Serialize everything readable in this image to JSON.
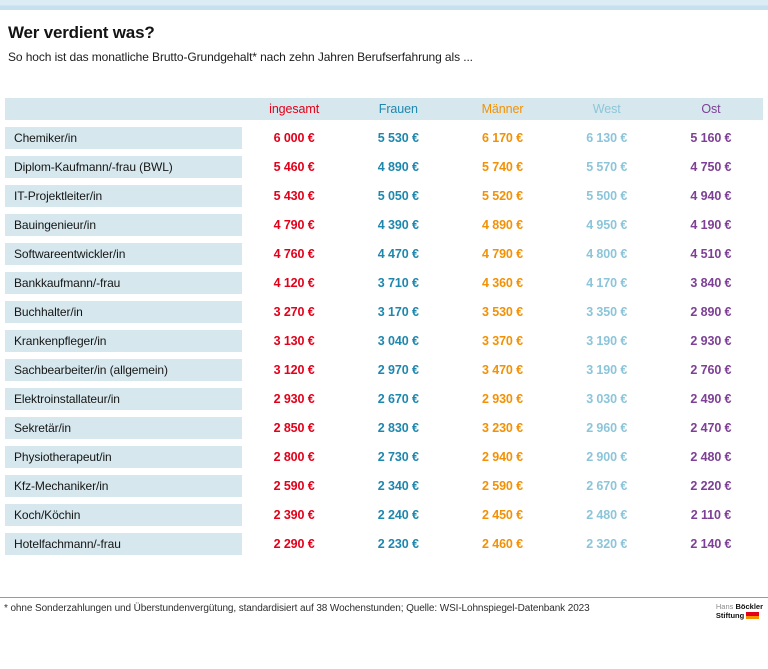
{
  "header": {
    "title": "Wer verdient was?",
    "subtitle": "So hoch ist das monatliche Brutto-Grundgehalt* nach zehn Jahren Berufserfahrung als ..."
  },
  "table": {
    "columns": [
      {
        "key": "ingesamt",
        "label": "ingesamt",
        "color": "#e2001a"
      },
      {
        "key": "frauen",
        "label": "Frauen",
        "color": "#1e87ae"
      },
      {
        "key": "maenner",
        "label": "Männer",
        "color": "#f29105"
      },
      {
        "key": "west",
        "label": "West",
        "color": "#8cc5d9"
      },
      {
        "key": "ost",
        "label": "Ost",
        "color": "#7e4096"
      }
    ],
    "rows": [
      {
        "label": "Chemiker/in",
        "values": [
          "6 000 €",
          "5 530 €",
          "6 170 €",
          "6 130 €",
          "5 160 €"
        ]
      },
      {
        "label": "Diplom-Kaufmann/-frau (BWL)",
        "values": [
          "5 460 €",
          "4 890 €",
          "5 740 €",
          "5 570 €",
          "4 750 €"
        ]
      },
      {
        "label": "IT-Projektleiter/in",
        "values": [
          "5 430 €",
          "5 050 €",
          "5 520 €",
          "5 500 €",
          "4 940 €"
        ]
      },
      {
        "label": "Bauingenieur/in",
        "values": [
          "4 790 €",
          "4 390 €",
          "4 890 €",
          "4 950 €",
          "4 190 €"
        ]
      },
      {
        "label": "Softwareentwickler/in",
        "values": [
          "4 760 €",
          "4 470 €",
          "4 790 €",
          "4 800 €",
          "4 510 €"
        ]
      },
      {
        "label": "Bankkaufmann/-frau",
        "values": [
          "4 120 €",
          "3 710 €",
          "4 360 €",
          "4 170 €",
          "3 840 €"
        ]
      },
      {
        "label": "Buchhalter/in",
        "values": [
          "3 270 €",
          "3 170 €",
          "3 530 €",
          "3 350 €",
          "2 890 €"
        ]
      },
      {
        "label": "Krankenpfleger/in",
        "values": [
          "3 130 €",
          "3 040 €",
          "3 370 €",
          "3 190 €",
          "2 930 €"
        ]
      },
      {
        "label": "Sachbearbeiter/in (allgemein)",
        "values": [
          "3 120 €",
          "2 970 €",
          "3 470 €",
          "3 190 €",
          "2 760 €"
        ]
      },
      {
        "label": "Elektroinstallateur/in",
        "values": [
          "2 930 €",
          "2 670 €",
          "2 930 €",
          "3 030 €",
          "2 490 €"
        ]
      },
      {
        "label": "Sekretär/in",
        "values": [
          "2 850 €",
          "2 830 €",
          "3 230 €",
          "2 960 €",
          "2 470 €"
        ]
      },
      {
        "label": "Physiotherapeut/in",
        "values": [
          "2 800 €",
          "2 730 €",
          "2 940 €",
          "2 900 €",
          "2 480 €"
        ]
      },
      {
        "label": "Kfz-Mechaniker/in",
        "values": [
          "2 590 €",
          "2 340 €",
          "2 590 €",
          "2 670 €",
          "2 220 €"
        ]
      },
      {
        "label": "Koch/Köchin",
        "values": [
          "2 390 €",
          "2 240 €",
          "2 450 €",
          "2 480 €",
          "2 110 €"
        ]
      },
      {
        "label": "Hotelfachmann/-frau",
        "values": [
          "2 290 €",
          "2 230 €",
          "2 460 €",
          "2 320 €",
          "2 140 €"
        ]
      }
    ]
  },
  "footer": {
    "note": "* ohne Sonderzahlungen und Überstundenvergütung, standardisiert auf 38 Wochenstunden; Quelle: WSI-Lohnspiegel-Datenbank 2023",
    "logo": {
      "line1_light": "Hans ",
      "line1_bold": "Böckler",
      "line2_bold": "Stiftung"
    }
  },
  "chart_data": {
    "type": "table",
    "title": "Wer verdient was?",
    "subtitle": "So hoch ist das monatliche Brutto-Grundgehalt* nach zehn Jahren Berufserfahrung als ...",
    "categories": [
      "Chemiker/in",
      "Diplom-Kaufmann/-frau (BWL)",
      "IT-Projektleiter/in",
      "Bauingenieur/in",
      "Softwareentwickler/in",
      "Bankkaufmann/-frau",
      "Buchhalter/in",
      "Krankenpfleger/in",
      "Sachbearbeiter/in (allgemein)",
      "Elektroinstallateur/in",
      "Sekretär/in",
      "Physiotherapeut/in",
      "Kfz-Mechaniker/in",
      "Koch/Köchin",
      "Hotelfachmann/-frau"
    ],
    "series": [
      {
        "name": "ingesamt",
        "unit": "€",
        "values": [
          6000,
          5460,
          5430,
          4790,
          4760,
          4120,
          3270,
          3130,
          3120,
          2930,
          2850,
          2800,
          2590,
          2390,
          2290
        ]
      },
      {
        "name": "Frauen",
        "unit": "€",
        "values": [
          5530,
          4890,
          5050,
          4390,
          4470,
          3710,
          3170,
          3040,
          2970,
          2670,
          2830,
          2730,
          2340,
          2240,
          2230
        ]
      },
      {
        "name": "Männer",
        "unit": "€",
        "values": [
          6170,
          5740,
          5520,
          4890,
          4790,
          4360,
          3530,
          3370,
          3470,
          2930,
          3230,
          2940,
          2590,
          2450,
          2460
        ]
      },
      {
        "name": "West",
        "unit": "€",
        "values": [
          6130,
          5570,
          5500,
          4950,
          4800,
          4170,
          3350,
          3190,
          3190,
          3030,
          2960,
          2900,
          2670,
          2480,
          2320
        ]
      },
      {
        "name": "Ost",
        "unit": "€",
        "values": [
          5160,
          4750,
          4940,
          4190,
          4510,
          3840,
          2890,
          2930,
          2760,
          2490,
          2470,
          2480,
          2220,
          2110,
          2140
        ]
      }
    ],
    "source_note": "* ohne Sonderzahlungen und Überstundenvergütung, standardisiert auf 38 Wochenstunden; Quelle: WSI-Lohnspiegel-Datenbank 2023"
  }
}
